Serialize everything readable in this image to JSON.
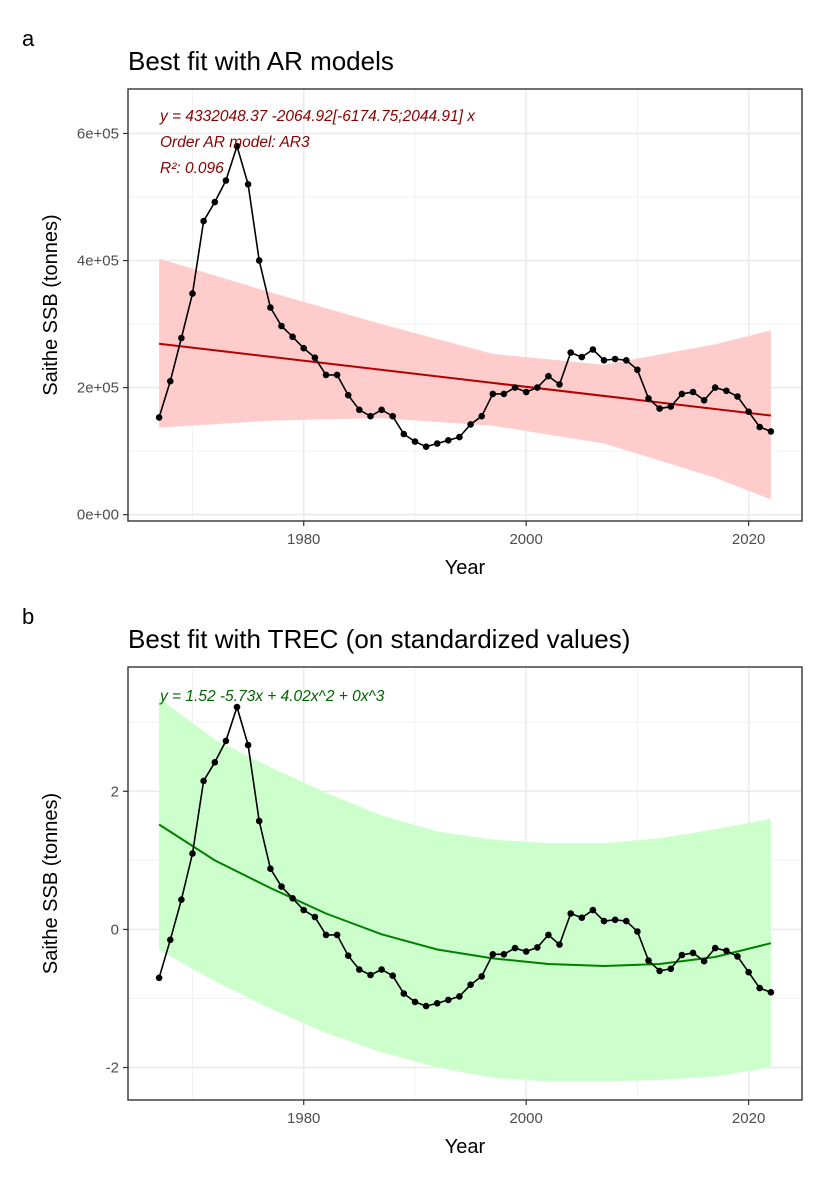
{
  "chart_data": [
    {
      "type": "line",
      "tag": "a",
      "title": "Best fit with AR models",
      "xlabel": "Year",
      "ylabel": "Saithe SSB (tonnes)",
      "xlim": [
        1964.2,
        2024.8
      ],
      "ylim": [
        -10000,
        670000
      ],
      "x_ticks": [
        1980,
        2000,
        2020
      ],
      "x_tick_labels": [
        "1980",
        "2000",
        "2020"
      ],
      "y_ticks": [
        0,
        200000,
        400000,
        600000
      ],
      "y_tick_labels": [
        "0e+00",
        "2e+05",
        "4e+05",
        "6e+05"
      ],
      "x_minor_ticks": [
        1970,
        1990,
        2010
      ],
      "y_minor_ticks": [
        100000,
        300000,
        500000
      ],
      "grid": true,
      "annotations": [
        "y = 4332048.37  -2064.92[-6174.75;2044.91] x",
        "Order AR model: AR3",
        "R²: 0.096"
      ],
      "annotation_color": "#8b0000",
      "observed": {
        "color": "#000000",
        "x": [
          1967,
          1968,
          1969,
          1970,
          1971,
          1972,
          1973,
          1974,
          1975,
          1976,
          1977,
          1978,
          1979,
          1980,
          1981,
          1982,
          1983,
          1984,
          1985,
          1986,
          1987,
          1988,
          1989,
          1990,
          1991,
          1992,
          1993,
          1994,
          1995,
          1996,
          1997,
          1998,
          1999,
          2000,
          2001,
          2002,
          2003,
          2004,
          2005,
          2006,
          2007,
          2008,
          2009,
          2010,
          2011,
          2012,
          2013,
          2014,
          2015,
          2016,
          2017,
          2018,
          2019,
          2020,
          2021,
          2022
        ],
        "y": [
          153000,
          210000,
          278000,
          348000,
          462000,
          492000,
          526000,
          580000,
          520000,
          400000,
          326000,
          297000,
          280000,
          262000,
          247000,
          220000,
          220000,
          188000,
          165000,
          155000,
          165000,
          155000,
          127000,
          115000,
          107000,
          112000,
          117000,
          122000,
          142000,
          155000,
          190000,
          190000,
          200000,
          193000,
          200000,
          218000,
          205000,
          255000,
          248000,
          260000,
          243000,
          245000,
          243000,
          228000,
          183000,
          167000,
          170000,
          190000,
          193000,
          180000,
          200000,
          195000,
          186000,
          162000,
          138000,
          131000
        ]
      },
      "fit": {
        "color": "#b30000",
        "x": [
          1967,
          2022
        ],
        "y": [
          269000,
          156000
        ]
      },
      "confidence_band": {
        "color": "#ffcccc",
        "x": [
          1967,
          1977,
          1987,
          1997,
          2007,
          2017,
          2022
        ],
        "lower": [
          137000,
          148000,
          152000,
          140000,
          112000,
          58000,
          24000
        ],
        "upper": [
          403000,
          350000,
          300000,
          253000,
          236000,
          268000,
          290000
        ]
      }
    },
    {
      "type": "line",
      "tag": "b",
      "title": "Best fit with TREC (on standardized values)",
      "xlabel": "Year",
      "ylabel": "Saithe SSB (tonnes)",
      "xlim": [
        1964.2,
        2024.8
      ],
      "ylim": [
        -2.47,
        3.8
      ],
      "x_ticks": [
        1980,
        2000,
        2020
      ],
      "x_tick_labels": [
        "1980",
        "2000",
        "2020"
      ],
      "y_ticks": [
        -2,
        0,
        2
      ],
      "y_tick_labels": [
        "-2",
        "0",
        "2"
      ],
      "x_minor_ticks": [
        1970,
        1990,
        2010
      ],
      "y_minor_ticks": [
        -1,
        1,
        3
      ],
      "grid": true,
      "annotations": [
        "y =  1.52   -5.73x  + 4.02x^2  + 0x^3"
      ],
      "annotation_color": "#006400",
      "observed": {
        "color": "#000000",
        "x": [
          1967,
          1968,
          1969,
          1970,
          1971,
          1972,
          1973,
          1974,
          1975,
          1976,
          1977,
          1978,
          1979,
          1980,
          1981,
          1982,
          1983,
          1984,
          1985,
          1986,
          1987,
          1988,
          1989,
          1990,
          1991,
          1992,
          1993,
          1994,
          1995,
          1996,
          1997,
          1998,
          1999,
          2000,
          2001,
          2002,
          2003,
          2004,
          2005,
          2006,
          2007,
          2008,
          2009,
          2010,
          2011,
          2012,
          2013,
          2014,
          2015,
          2016,
          2017,
          2018,
          2019,
          2020,
          2021,
          2022
        ],
        "y": [
          -0.7,
          -0.15,
          0.43,
          1.1,
          2.15,
          2.42,
          2.73,
          3.22,
          2.67,
          1.57,
          0.88,
          0.62,
          0.45,
          0.28,
          0.18,
          -0.08,
          -0.08,
          -0.38,
          -0.58,
          -0.66,
          -0.58,
          -0.67,
          -0.93,
          -1.05,
          -1.11,
          -1.07,
          -1.02,
          -0.97,
          -0.8,
          -0.68,
          -0.36,
          -0.36,
          -0.27,
          -0.32,
          -0.26,
          -0.08,
          -0.22,
          0.23,
          0.17,
          0.28,
          0.12,
          0.14,
          0.12,
          -0.03,
          -0.45,
          -0.6,
          -0.57,
          -0.37,
          -0.34,
          -0.46,
          -0.27,
          -0.31,
          -0.39,
          -0.62,
          -0.85,
          -0.91
        ]
      },
      "fit": {
        "color": "#008000",
        "x": [
          1967,
          1972,
          1977,
          1982,
          1987,
          1992,
          1997,
          2002,
          2007,
          2012,
          2017,
          2022
        ],
        "y": [
          1.52,
          1.0,
          0.6,
          0.23,
          -0.07,
          -0.29,
          -0.42,
          -0.5,
          -0.53,
          -0.5,
          -0.4,
          -0.2
        ]
      },
      "confidence_band": {
        "color": "#ccffcc",
        "x": [
          1967,
          1972,
          1977,
          1982,
          1987,
          1992,
          1997,
          2002,
          2007,
          2012,
          2017,
          2022
        ],
        "lower": [
          -0.3,
          -0.75,
          -1.15,
          -1.5,
          -1.78,
          -2.0,
          -2.15,
          -2.2,
          -2.2,
          -2.18,
          -2.13,
          -2.0
        ],
        "upper": [
          3.35,
          2.75,
          2.35,
          1.98,
          1.65,
          1.42,
          1.3,
          1.25,
          1.25,
          1.32,
          1.45,
          1.6
        ]
      }
    }
  ]
}
